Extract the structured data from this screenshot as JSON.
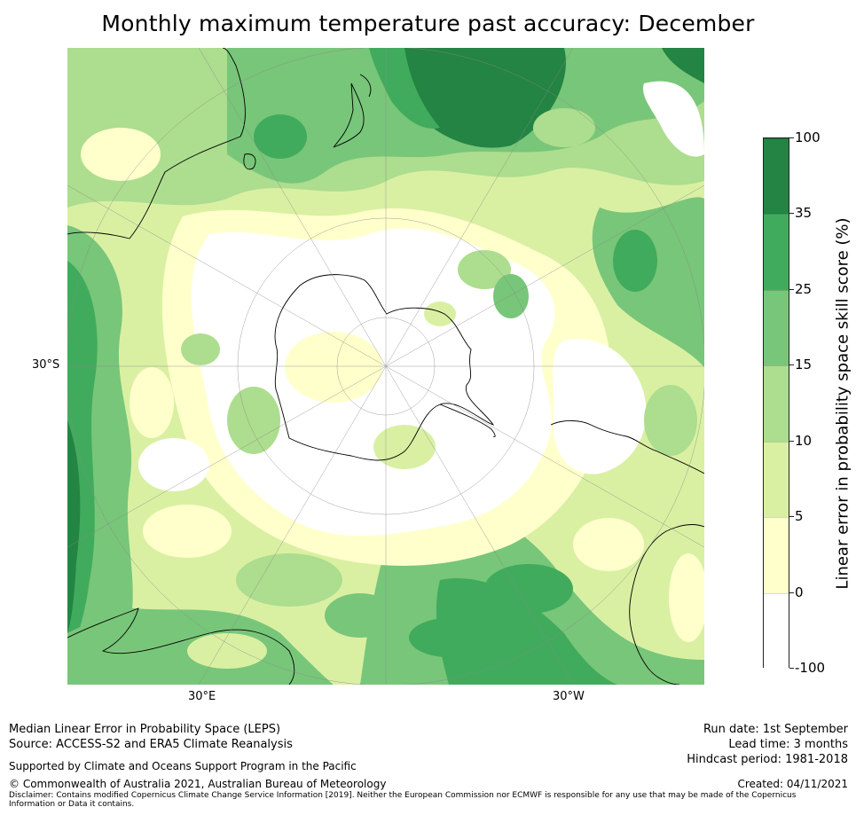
{
  "title": "Monthly maximum temperature past accuracy: December",
  "map": {
    "projection": "south-polar-stereographic",
    "lat_labels": [
      "30°S"
    ],
    "lon_labels": {
      "east": "30°E",
      "west": "30°W"
    }
  },
  "colorbar": {
    "label": "Linear error in probability space skill score (%)",
    "ticks": [
      "100",
      "35",
      "25",
      "15",
      "10",
      "5",
      "0",
      "-100"
    ],
    "bins": [
      {
        "min": -100,
        "max": 0,
        "color": "#ffffff"
      },
      {
        "min": 0,
        "max": 5,
        "color": "#ffffcc"
      },
      {
        "min": 5,
        "max": 10,
        "color": "#d9f0a3"
      },
      {
        "min": 10,
        "max": 15,
        "color": "#addd8e"
      },
      {
        "min": 15,
        "max": 25,
        "color": "#78c679"
      },
      {
        "min": 25,
        "max": 35,
        "color": "#41ab5d"
      },
      {
        "min": 35,
        "max": 100,
        "color": "#238443"
      }
    ]
  },
  "footer": {
    "left_line1": "Median Linear Error in Probability Space (LEPS)",
    "left_line2": "Source: ACCESS-S2 and ERA5 Climate Reanalysis",
    "supported": "Supported by Climate and Oceans Support Program in the Pacific",
    "copyright": "© Commonwealth of Australia 2021, Australian Bureau of Meteorology",
    "disclaimer": "Disclaimer: Contains modified Copernicus Climate Change Service Information [2019]. Neither the European Commission nor ECMWF is responsible for any use that may be made of the Copernicus Information or Data it contains.",
    "run_date": "Run date: 1st September",
    "lead_time": "Lead time: 3 months",
    "hindcast": "Hindcast period: 1981-2018",
    "created": "Created: 04/11/2021"
  }
}
